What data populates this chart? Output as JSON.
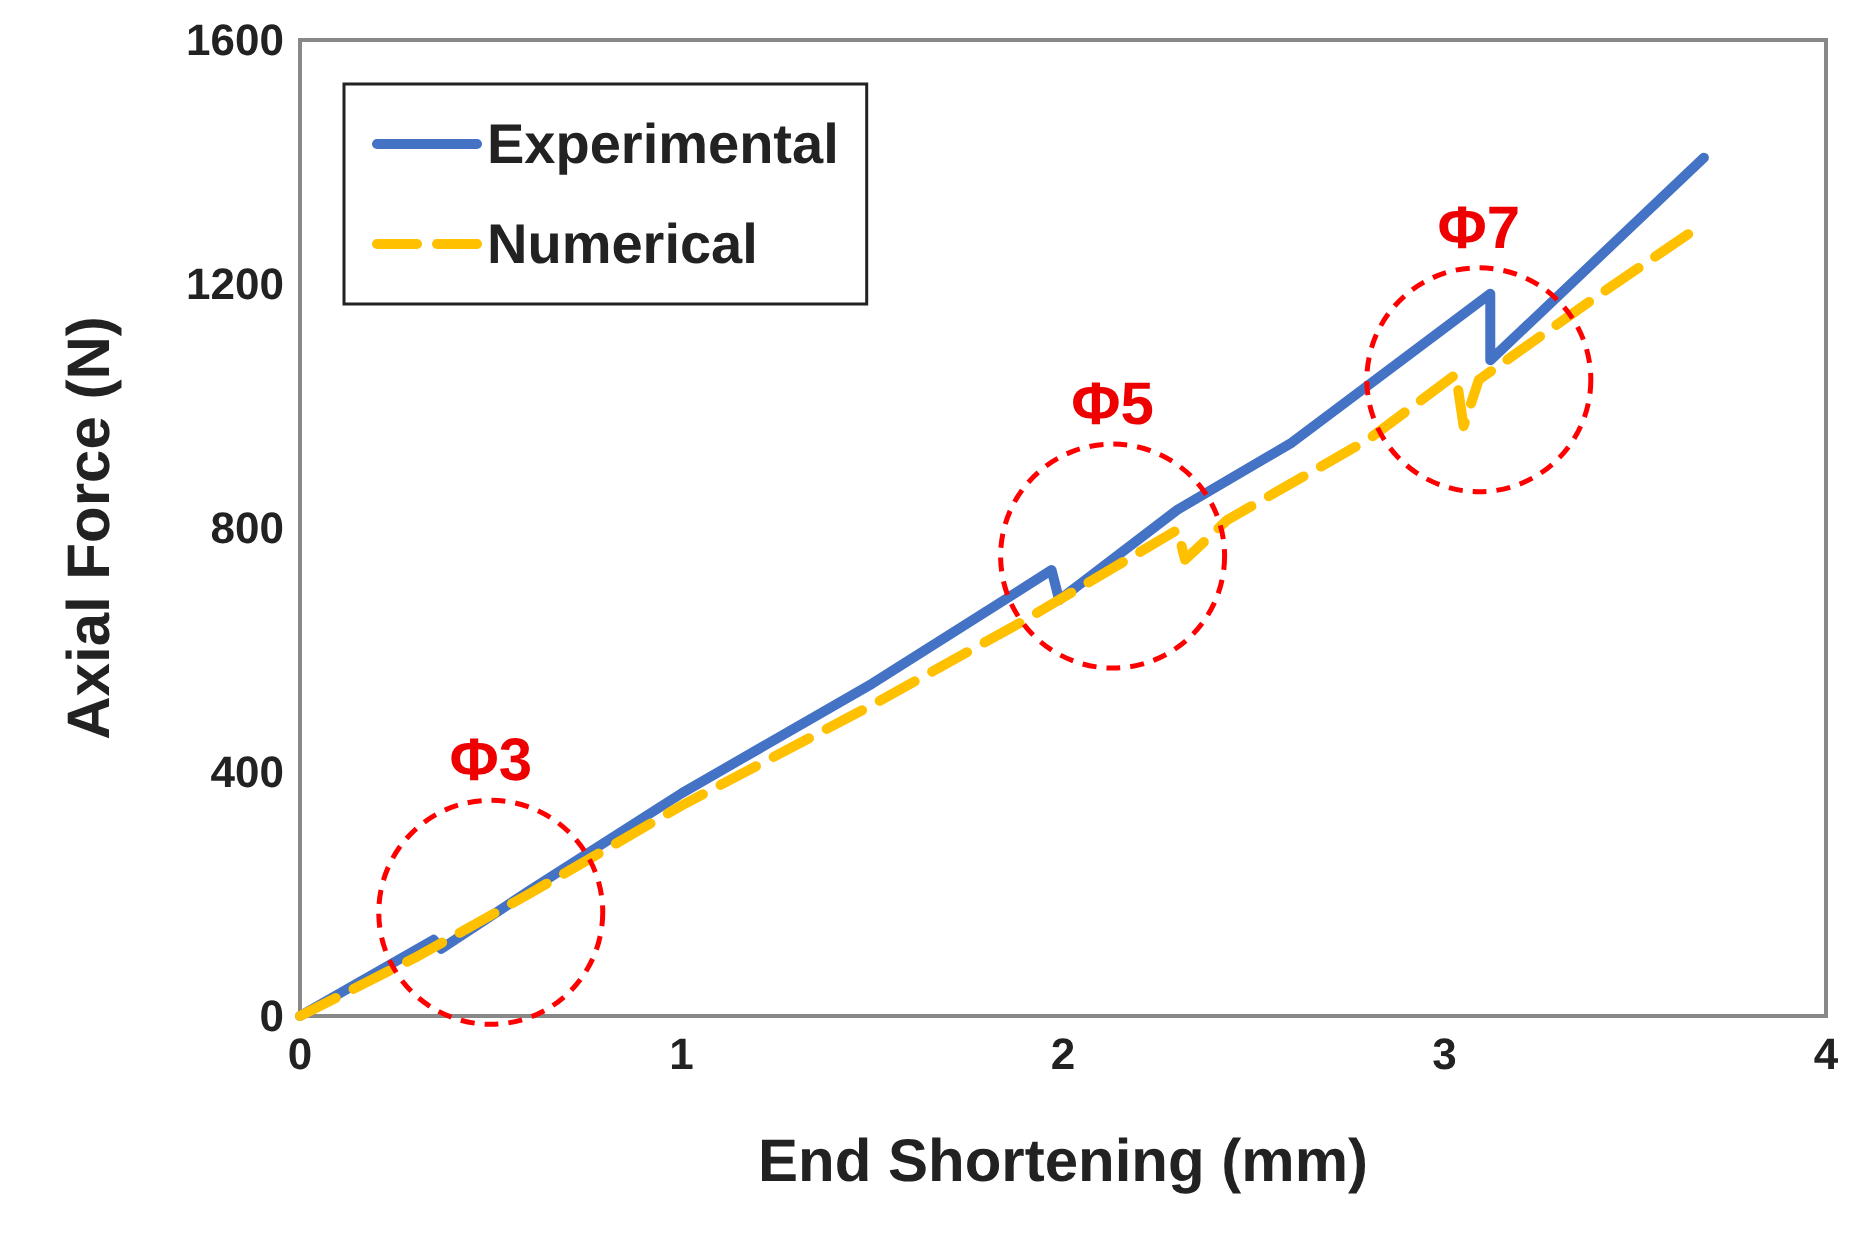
{
  "chart_data": {
    "type": "line",
    "xlabel": "End Shortening (mm)",
    "ylabel": "Axial Force (N)",
    "xlim": [
      0,
      4
    ],
    "xticks": [
      0,
      1,
      2,
      3,
      4
    ],
    "ylim": [
      0,
      1600
    ],
    "yticks": [
      0,
      400,
      800,
      1200,
      1600
    ],
    "grid": false,
    "legend": "top left",
    "marker": "none",
    "series": [
      {
        "name": "Experimental",
        "color": "#4472c4",
        "line_style": "solid",
        "x": [
          0,
          0.35,
          0.37,
          0.6,
          1,
          1.5,
          1.97,
          1.99,
          2.3,
          2.6,
          3.12,
          3.12,
          3.68
        ],
        "values": [
          0,
          125,
          110,
          205,
          365,
          545,
          731,
          682,
          830,
          940,
          1184,
          1075,
          1407
        ]
      },
      {
        "name": "Numerical",
        "color": "#ffc000",
        "line_style": "dashed",
        "x": [
          0,
          0.3,
          0.6,
          1,
          1.5,
          1.9,
          2.3,
          2.32,
          2.43,
          2.8,
          3.03,
          3.05,
          3.09,
          3.4,
          3.67
        ],
        "values": [
          0,
          95,
          200,
          345,
          510,
          649,
          797,
          748,
          813,
          945,
          1052,
          967,
          1043,
          1180,
          1295
        ]
      }
    ],
    "annotations": [
      {
        "text": "Φ3",
        "x": 0.5,
        "y": 170
      },
      {
        "text": "Φ5",
        "x": 2.13,
        "y": 754
      },
      {
        "text": "Φ7",
        "x": 3.09,
        "y": 1043
      }
    ]
  }
}
